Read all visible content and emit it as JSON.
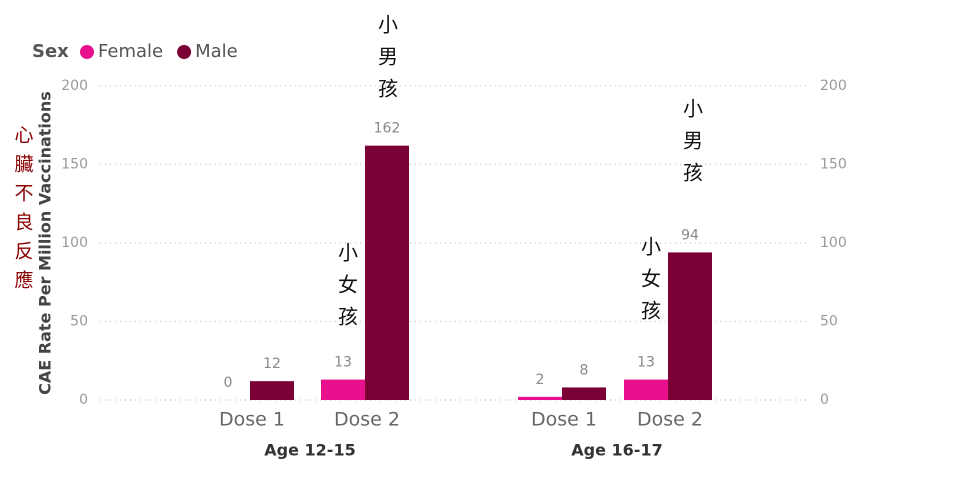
{
  "chart_data": {
    "type": "bar",
    "legend_title": "Sex",
    "y_label": "CAE Rate Per Million Vaccinations",
    "categories": [
      "Dose 1",
      "Dose 2",
      "Dose 1",
      "Dose 2"
    ],
    "group_labels": [
      "Age 12-15",
      "Age 16-17"
    ],
    "series": [
      {
        "name": "Female",
        "color": "#e8108c",
        "values": [
          0,
          13,
          2,
          13
        ]
      },
      {
        "name": "Male",
        "color": "#7b0035",
        "values": [
          12,
          162,
          8,
          94
        ]
      }
    ],
    "ylim": [
      0,
      200
    ],
    "yticks": [
      0,
      50,
      100,
      150,
      200
    ],
    "y2lim": [
      0,
      200
    ],
    "y2ticks": [
      0,
      50,
      100,
      150,
      200
    ],
    "grid": true,
    "legend": "top-left",
    "annotations": [
      "心臟不良反應",
      "小女孩",
      "小男孩",
      "小女孩",
      "小男孩"
    ]
  }
}
